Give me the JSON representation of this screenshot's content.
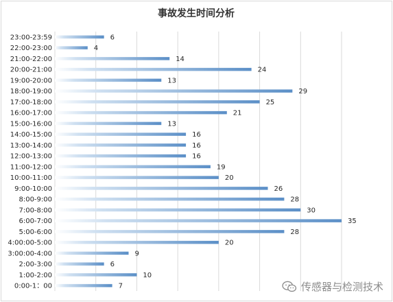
{
  "chart_data": {
    "type": "bar",
    "orientation": "horizontal",
    "title": "事故发生时间分析",
    "categories": [
      "0:00-1：00",
      "1:00-2:00",
      "2:00-3:00",
      "3:00:00-4:00",
      "4:00:00-5:00",
      "5:00-6:00",
      "6:00-7:00",
      "7:00-8:00",
      "8:00-9:00",
      "9:00-10:00",
      "10:00-11:00",
      "11:00-12:00",
      "12:00-13:00",
      "13:00-14:00",
      "14:00-15:00",
      "15:00-16:00",
      "16:00-17:00",
      "17:00-18:00",
      "18:00-19:00",
      "19:00-20:00",
      "20:00-21:00",
      "21:00-22:00",
      "22:00-23:00",
      "23:00-23:59"
    ],
    "values": [
      7,
      10,
      6,
      9,
      20,
      28,
      35,
      30,
      28,
      26,
      20,
      19,
      16,
      16,
      16,
      13,
      21,
      25,
      29,
      13,
      24,
      14,
      4,
      6
    ],
    "xlim": [
      0,
      35
    ],
    "grid": true,
    "data_labels": true,
    "legend": "none",
    "colors": {
      "bar_start": "#ffffff",
      "bar_end": "#5b8fc7",
      "grid": "#d9d9d9",
      "text": "#262626",
      "title": "#333333"
    }
  },
  "watermark": {
    "text": "传感器与检测技术",
    "icon": "wechat-icon"
  }
}
